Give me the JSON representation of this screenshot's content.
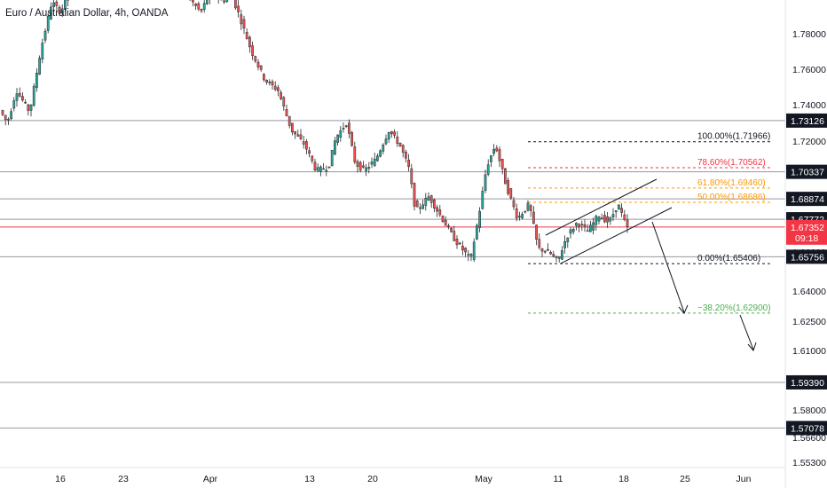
{
  "title": "Euro / Australian Dollar, 4h, OANDA",
  "colors": {
    "up": "#26a69a",
    "down": "#ef5350",
    "candle_line": "#26272b",
    "level_line": "#9598a1",
    "price_line": "#f23645",
    "fib_black": "#131722",
    "fib_red": "#f23645",
    "fib_orange": "#ff9800",
    "fib_green": "#4caf50"
  },
  "chart_data": {
    "type": "candlestick",
    "y_axis": {
      "ticks": [
        "1.78000",
        "1.76000",
        "1.74000",
        "1.72000",
        "1.66000",
        "1.64000",
        "1.62500",
        "1.61000",
        "1.58000",
        "1.56600",
        "1.55300"
      ]
    },
    "x_axis": {
      "ticks": [
        "16",
        "23",
        "Apr",
        "13",
        "20",
        "May",
        "11",
        "18",
        "25",
        "Jun"
      ]
    },
    "horizontal_levels": [
      {
        "value": "1.73126",
        "color": "#131722"
      },
      {
        "value": "1.70337",
        "color": "#131722"
      },
      {
        "value": "1.68874",
        "color": "#131722"
      },
      {
        "value": "1.67772",
        "color": "#131722"
      },
      {
        "value": "1.65756",
        "color": "#131722"
      },
      {
        "value": "1.59390",
        "color": "#131722"
      },
      {
        "value": "1.57078",
        "color": "#131722"
      }
    ],
    "current_price": {
      "value": "1.67352",
      "countdown": "09:18",
      "color": "#f23645"
    },
    "fibonacci": [
      {
        "label": "100.00%(1.71966)",
        "color": "#131722"
      },
      {
        "label": "78.60%(1.70562)",
        "color": "#f23645"
      },
      {
        "label": "61.80%(1.69460)",
        "color": "#ff9800"
      },
      {
        "label": "50.00%(1.68686)",
        "color": "#ff9800"
      },
      {
        "label": "0.00%(1.65406)",
        "color": "#131722"
      },
      {
        "label": "−38.20%(1.62900)",
        "color": "#4caf50"
      }
    ]
  }
}
